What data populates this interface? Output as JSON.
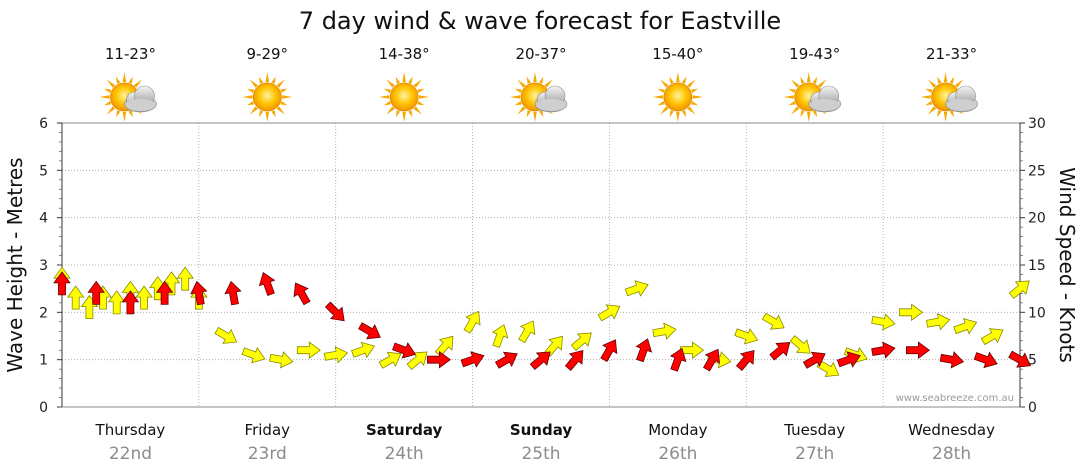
{
  "chart_data": {
    "type": "line",
    "title": "7 day wind & wave forecast for Eastville",
    "ylabel_left": "Wave Height - Metres",
    "ylabel_right": "Wind Speed - Knots",
    "watermark": "www.seabreeze.com.au",
    "left_axis": {
      "min": 0,
      "max": 6,
      "ticks": [
        "0",
        "1",
        "2",
        "3",
        "4",
        "5",
        "6"
      ]
    },
    "right_axis": {
      "min": 0,
      "max": 30,
      "ticks": [
        "0",
        "5",
        "10",
        "15",
        "20",
        "25",
        "30"
      ]
    },
    "grid": true,
    "days": [
      {
        "name": "Thursday",
        "date": "22nd",
        "temp": "11-23°",
        "weather": "partly-cloudy",
        "bold": false
      },
      {
        "name": "Friday",
        "date": "23rd",
        "temp": "9-29°",
        "weather": "sunny",
        "bold": false
      },
      {
        "name": "Saturday",
        "date": "24th",
        "temp": "14-38°",
        "weather": "sunny",
        "bold": true
      },
      {
        "name": "Sunday",
        "date": "25th",
        "temp": "20-37°",
        "weather": "partly-cloudy",
        "bold": true
      },
      {
        "name": "Monday",
        "date": "26th",
        "temp": "15-40°",
        "weather": "sunny",
        "bold": false
      },
      {
        "name": "Tuesday",
        "date": "27th",
        "temp": "19-43°",
        "weather": "partly-cloudy",
        "bold": false
      },
      {
        "name": "Wednesday",
        "date": "28th",
        "temp": "21-33°",
        "weather": "partly-cloudy",
        "bold": false
      }
    ],
    "series": [
      {
        "name": "Wind Speed",
        "unit": "knots",
        "x": [
          0,
          0.25,
          0.5,
          0.75,
          1,
          1.25,
          1.5,
          1.75,
          2,
          2.25,
          2.5,
          2.75,
          3,
          3.25,
          3.5,
          3.75,
          4,
          4.25,
          4.5,
          4.75,
          5,
          5.25,
          5.5,
          5.75,
          6,
          6.25,
          6.5,
          6.75,
          7
        ],
        "values": [
          13,
          12,
          11,
          12,
          12,
          12,
          13,
          12,
          10,
          8,
          6,
          5,
          5,
          5,
          5,
          5,
          6,
          6,
          5,
          5,
          5,
          6,
          5,
          5,
          6,
          6,
          5,
          5,
          5
        ],
        "directions_deg": [
          180,
          180,
          180,
          180,
          170,
          170,
          160,
          150,
          315,
          300,
          290,
          270,
          250,
          240,
          230,
          220,
          210,
          200,
          200,
          210,
          220,
          230,
          240,
          250,
          260,
          270,
          280,
          290,
          300
        ],
        "color": "#ff0000"
      },
      {
        "name": "Wave Height",
        "unit": "metres",
        "x": [
          0,
          0.1,
          0.2,
          0.3,
          0.4,
          0.5,
          0.6,
          0.7,
          0.8,
          0.9,
          1,
          1.2,
          1.4,
          1.6,
          1.8,
          2,
          2.2,
          2.4,
          2.6,
          2.8,
          3,
          3.2,
          3.4,
          3.6,
          3.8,
          4,
          4.2,
          4.4,
          4.6,
          4.8,
          5,
          5.2,
          5.4,
          5.6,
          5.8,
          6,
          6.2,
          6.4,
          6.6,
          6.8,
          7
        ],
        "values": [
          2.7,
          2.3,
          2.1,
          2.3,
          2.2,
          2.4,
          2.3,
          2.5,
          2.6,
          2.7,
          2.3,
          1.5,
          1.1,
          1.0,
          1.2,
          1.1,
          1.2,
          1.0,
          1.0,
          1.3,
          1.8,
          1.5,
          1.6,
          1.3,
          1.4,
          2.0,
          2.5,
          1.6,
          1.2,
          1.0,
          1.5,
          1.8,
          1.3,
          0.8,
          1.1,
          1.8,
          2.0,
          1.8,
          1.7,
          1.5,
          2.5
        ],
        "directions_deg": [
          180,
          180,
          180,
          180,
          180,
          180,
          180,
          180,
          180,
          180,
          180,
          300,
          290,
          280,
          270,
          260,
          250,
          240,
          230,
          220,
          210,
          200,
          210,
          220,
          230,
          240,
          250,
          260,
          270,
          280,
          290,
          300,
          310,
          300,
          290,
          280,
          270,
          260,
          250,
          240,
          230
        ],
        "color": "#ffff00"
      }
    ]
  }
}
